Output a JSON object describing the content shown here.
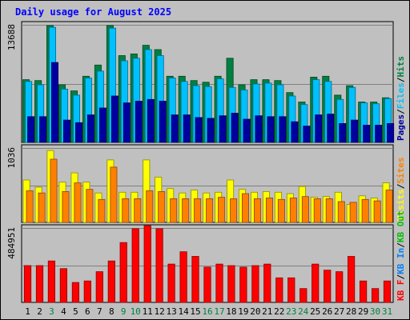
{
  "chart_data": {
    "type": "bar",
    "title": "Daily usage for August 2025",
    "categories": [
      "1",
      "2",
      "3",
      "4",
      "5",
      "6",
      "7",
      "8",
      "9",
      "10",
      "11",
      "12",
      "13",
      "14",
      "15",
      "16",
      "17",
      "18",
      "19",
      "20",
      "21",
      "22",
      "23",
      "24",
      "25",
      "26",
      "27",
      "28",
      "29",
      "30",
      "31"
    ],
    "weekend_days": [
      "3",
      "9",
      "10",
      "16",
      "17",
      "23",
      "24",
      "30",
      "31"
    ],
    "panels": [
      {
        "id": "top",
        "ymax": 13688,
        "ymax_label": "13688",
        "side_label": [
          "Pages",
          "/",
          "Files",
          "/",
          "Hits"
        ],
        "series": [
          {
            "name": "Hits",
            "color": "#008040",
            "values": [
              7300,
              7200,
              13600,
              6700,
              6000,
              7700,
              9000,
              13600,
              10100,
              10300,
              11300,
              10800,
              7700,
              7700,
              7200,
              7000,
              7700,
              9800,
              6700,
              7300,
              7300,
              7200,
              5800,
              4700,
              7600,
              7700,
              5500,
              6600,
              4700,
              4700,
              5200
            ]
          },
          {
            "name": "Files",
            "color": "#00c0ff",
            "values": [
              7100,
              6700,
              13400,
              6200,
              5500,
              7500,
              8300,
              13300,
              9500,
              9800,
              10800,
              10100,
              7500,
              7100,
              6600,
              6500,
              7400,
              6400,
              6100,
              6800,
              6900,
              6700,
              5400,
              4400,
              7300,
              7100,
              5000,
              6400,
              4600,
              4500,
              5100
            ]
          },
          {
            "name": "Pages",
            "color": "#0000a0",
            "values": [
              3000,
              3000,
              9300,
              2600,
              2300,
              3200,
              4000,
              5400,
              4600,
              4800,
              5000,
              4800,
              3200,
              3200,
              2900,
              2800,
              3100,
              3400,
              2700,
              3100,
              3000,
              3000,
              2400,
              1900,
              3200,
              3300,
              2200,
              2600,
              2000,
              2000,
              2200
            ]
          }
        ]
      },
      {
        "id": "middle",
        "ymax": 1036,
        "ymax_label": "1036",
        "side_label": [
          "Visits",
          "/",
          "Sites"
        ],
        "series": [
          {
            "name": "Visits",
            "color": "#ffff00",
            "values": [
              590,
              490,
              1000,
              560,
              690,
              560,
              410,
              870,
              420,
              420,
              870,
              630,
              470,
              410,
              450,
              410,
              420,
              590,
              460,
              420,
              430,
              420,
              400,
              500,
              350,
              360,
              420,
              250,
              370,
              340,
              550
            ]
          },
          {
            "name": "Sites",
            "color": "#ff8000",
            "values": [
              440,
              410,
              880,
              430,
              550,
              460,
              320,
              770,
              330,
              330,
              440,
              430,
              330,
              330,
              330,
              330,
              350,
              330,
              400,
              330,
              340,
              320,
              340,
              360,
              330,
              330,
              290,
              280,
              320,
              300,
              450
            ]
          }
        ]
      },
      {
        "id": "bottom",
        "ymax": 484951,
        "ymax_label": "484951",
        "side_label": [
          "KB F",
          "/",
          "KB In",
          "/",
          "KB Out"
        ],
        "series": [
          {
            "name": "KB F",
            "color": "#ff0000",
            "values": [
              240000,
              240000,
              270000,
              220000,
              130000,
              140000,
              200000,
              270000,
              390000,
              480000,
              500000,
              480000,
              250000,
              330000,
              300000,
              230000,
              250000,
              240000,
              230000,
              240000,
              250000,
              160000,
              160000,
              90000,
              250000,
              210000,
              200000,
              300000,
              140000,
              90000,
              140000
            ]
          }
        ]
      }
    ]
  }
}
